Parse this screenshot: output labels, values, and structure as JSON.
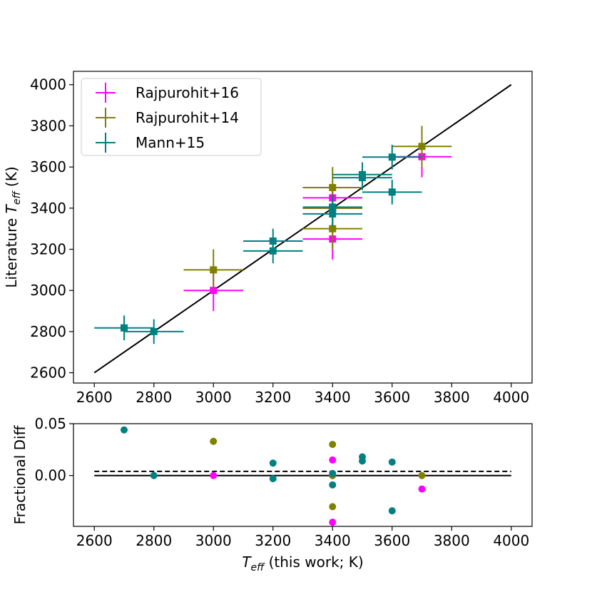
{
  "chart_data": [
    {
      "type": "scatter",
      "panel": "main",
      "xlabel_text": "",
      "ylabel_prefix": "Literature ",
      "ylabel_var": "T",
      "ylabel_sub": "eff",
      "ylabel_suffix": " (K)",
      "xlim": [
        2530,
        4070
      ],
      "ylim": [
        2550,
        4065
      ],
      "xticks": [
        2600,
        2800,
        3000,
        3200,
        3400,
        3600,
        3800,
        4000
      ],
      "yticks": [
        2600,
        2800,
        3000,
        3200,
        3400,
        3600,
        3800,
        4000
      ],
      "one_to_one_line": {
        "x": [
          2600,
          4000
        ],
        "y": [
          2600,
          4000
        ],
        "color": "#000000"
      },
      "legend": {
        "placement": "top-left",
        "entries": [
          "Rajpurohit+16",
          "Rajpurohit+14",
          "Mann+15"
        ]
      },
      "series": [
        {
          "name": "Rajpurohit+16",
          "color": "#ff00ff",
          "points": [
            {
              "x": 3000,
              "y": 3000,
              "xerr": 100,
              "yerr": 100
            },
            {
              "x": 3400,
              "y": 3450,
              "xerr": 100,
              "yerr": 50
            },
            {
              "x": 3400,
              "y": 3400,
              "xerr": 100,
              "yerr": 50
            },
            {
              "x": 3400,
              "y": 3250,
              "xerr": 100,
              "yerr": 100
            },
            {
              "x": 3700,
              "y": 3650,
              "xerr": 100,
              "yerr": 100
            }
          ]
        },
        {
          "name": "Rajpurohit+14",
          "color": "#808000",
          "points": [
            {
              "x": 3000,
              "y": 3100,
              "xerr": 100,
              "yerr": 100
            },
            {
              "x": 3400,
              "y": 3500,
              "xerr": 100,
              "yerr": 100
            },
            {
              "x": 3400,
              "y": 3400,
              "xerr": 100,
              "yerr": 100
            },
            {
              "x": 3400,
              "y": 3300,
              "xerr": 100,
              "yerr": 100
            },
            {
              "x": 3700,
              "y": 3700,
              "xerr": 100,
              "yerr": 100
            }
          ]
        },
        {
          "name": "Mann+15",
          "color": "#008080",
          "points": [
            {
              "x": 2700,
              "y": 2818,
              "xerr": 100,
              "yerr": 60
            },
            {
              "x": 2800,
              "y": 2800,
              "xerr": 100,
              "yerr": 60
            },
            {
              "x": 3200,
              "y": 3240,
              "xerr": 100,
              "yerr": 60
            },
            {
              "x": 3200,
              "y": 3192,
              "xerr": 100,
              "yerr": 60
            },
            {
              "x": 3400,
              "y": 3405,
              "xerr": 100,
              "yerr": 60
            },
            {
              "x": 3400,
              "y": 3372,
              "xerr": 100,
              "yerr": 60
            },
            {
              "x": 3500,
              "y": 3563,
              "xerr": 100,
              "yerr": 60
            },
            {
              "x": 3500,
              "y": 3548,
              "xerr": 100,
              "yerr": 60
            },
            {
              "x": 3600,
              "y": 3648,
              "xerr": 100,
              "yerr": 60
            },
            {
              "x": 3600,
              "y": 3478,
              "xerr": 100,
              "yerr": 60
            }
          ]
        }
      ]
    },
    {
      "type": "scatter",
      "panel": "residual",
      "xlabel_var": "T",
      "xlabel_sub": "eff",
      "xlabel_suffix": " (this work; K)",
      "ylabel": "Fractional Diff",
      "xlim": [
        2530,
        4070
      ],
      "ylim": [
        -0.049,
        0.05
      ],
      "xticks": [
        2600,
        2800,
        3000,
        3200,
        3400,
        3600,
        3800,
        4000
      ],
      "yticks": [
        0.0,
        0.05
      ],
      "ytick_labels": [
        "0.00",
        "0.05"
      ],
      "zero_line": {
        "y": 0.0,
        "x": [
          2600,
          4000
        ],
        "style": "solid"
      },
      "mean_line": {
        "y": 0.004,
        "x": [
          2600,
          4000
        ],
        "style": "dashed"
      },
      "series": [
        {
          "name": "Rajpurohit+16",
          "color": "#ff00ff",
          "points": [
            {
              "x": 3000,
              "y": 0.0
            },
            {
              "x": 3400,
              "y": 0.015
            },
            {
              "x": 3400,
              "y": 0.0
            },
            {
              "x": 3400,
              "y": -0.045
            },
            {
              "x": 3700,
              "y": -0.013
            }
          ]
        },
        {
          "name": "Rajpurohit+14",
          "color": "#808000",
          "points": [
            {
              "x": 3000,
              "y": 0.033
            },
            {
              "x": 3400,
              "y": 0.03
            },
            {
              "x": 3400,
              "y": 0.0
            },
            {
              "x": 3400,
              "y": -0.03
            },
            {
              "x": 3700,
              "y": 0.0
            }
          ]
        },
        {
          "name": "Mann+15",
          "color": "#008080",
          "points": [
            {
              "x": 2700,
              "y": 0.044
            },
            {
              "x": 2800,
              "y": 0.0
            },
            {
              "x": 3200,
              "y": 0.012
            },
            {
              "x": 3200,
              "y": -0.003
            },
            {
              "x": 3400,
              "y": 0.002
            },
            {
              "x": 3400,
              "y": -0.009
            },
            {
              "x": 3500,
              "y": 0.018
            },
            {
              "x": 3500,
              "y": 0.014
            },
            {
              "x": 3600,
              "y": 0.013
            },
            {
              "x": 3600,
              "y": -0.034
            }
          ]
        }
      ]
    }
  ]
}
